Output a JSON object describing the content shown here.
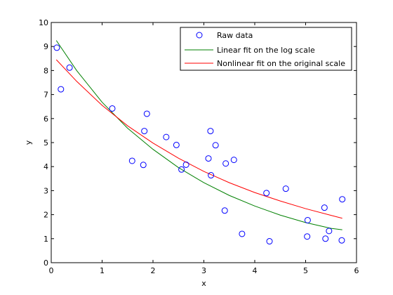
{
  "chart_data": {
    "type": "scatter",
    "title": "",
    "xlabel": "x",
    "ylabel": "y",
    "xlim": [
      0,
      6
    ],
    "ylim": [
      0,
      10
    ],
    "xticks": [
      0,
      1,
      2,
      3,
      4,
      5,
      6
    ],
    "yticks": [
      0,
      1,
      2,
      3,
      4,
      5,
      6,
      7,
      8,
      9,
      10
    ],
    "grid": false,
    "legend_position": "top-right",
    "series": [
      {
        "name": "Raw data",
        "kind": "scatter",
        "marker": "circle-open",
        "color": "#0000ff",
        "x": [
          0.11,
          0.19,
          0.36,
          1.2,
          1.59,
          1.81,
          1.83,
          1.88,
          2.26,
          2.46,
          2.56,
          2.65,
          3.09,
          3.13,
          3.14,
          3.23,
          3.41,
          3.43,
          3.59,
          3.75,
          4.23,
          4.29,
          4.61,
          5.03,
          5.04,
          5.37,
          5.39,
          5.46,
          5.71,
          5.72
        ],
        "y": [
          8.95,
          7.22,
          8.12,
          6.42,
          4.24,
          4.07,
          5.48,
          6.2,
          5.23,
          4.9,
          3.88,
          4.08,
          4.34,
          5.48,
          3.64,
          4.89,
          2.17,
          4.13,
          4.28,
          1.2,
          2.9,
          0.89,
          3.08,
          1.09,
          1.77,
          2.29,
          1.0,
          1.32,
          0.93,
          2.64
        ]
      },
      {
        "name": "Linear fit on the log scale",
        "kind": "line",
        "color": "#008000",
        "x": [
          0.1,
          0.5,
          1.0,
          1.5,
          2.0,
          2.5,
          3.0,
          3.5,
          4.0,
          4.5,
          5.0,
          5.5,
          5.72
        ],
        "y": [
          9.25,
          8.0,
          6.68,
          5.6,
          4.72,
          3.96,
          3.33,
          2.8,
          2.36,
          1.98,
          1.67,
          1.43,
          1.37
        ]
      },
      {
        "name": "Nonlinear fit on the original scale",
        "kind": "line",
        "color": "#ff0000",
        "x": [
          0.1,
          0.5,
          1.0,
          1.5,
          2.0,
          2.5,
          3.0,
          3.5,
          4.0,
          4.5,
          5.0,
          5.5,
          5.72
        ],
        "y": [
          8.45,
          7.55,
          6.55,
          5.7,
          4.98,
          4.35,
          3.8,
          3.33,
          2.92,
          2.57,
          2.25,
          1.97,
          1.85
        ]
      }
    ]
  }
}
